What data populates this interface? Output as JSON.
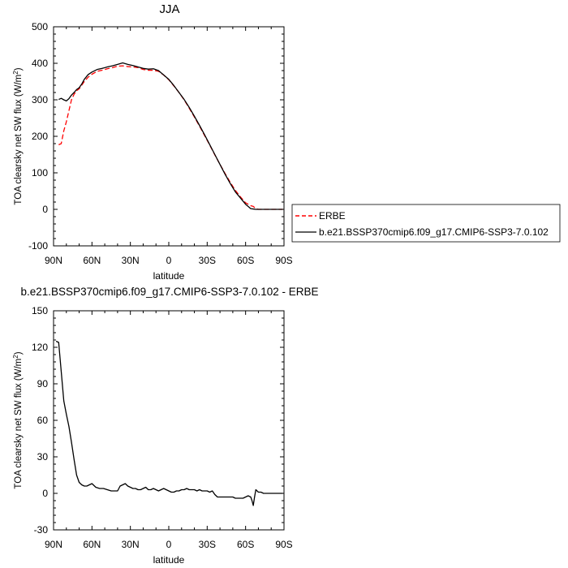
{
  "chart_data": [
    {
      "type": "line",
      "title": "JJA",
      "xlabel": "latitude",
      "ylabel": "TOA clearsky net SW flux (W/m",
      "ylabel_sup": "2",
      "ylabel_end": ")",
      "xlim": [
        90,
        -90
      ],
      "ylim": [
        -100,
        500
      ],
      "x_ticks": [
        90,
        60,
        30,
        0,
        -30,
        -60,
        -90
      ],
      "x_tick_labels": [
        "90N",
        "60N",
        "30N",
        "0",
        "30S",
        "60S",
        "90S"
      ],
      "y_ticks": [
        -100,
        0,
        100,
        200,
        300,
        400,
        500
      ],
      "y_tick_labels": [
        "-100",
        "0",
        "100",
        "200",
        "300",
        "400",
        "500"
      ],
      "legend": "outside-right",
      "series": [
        {
          "name": "ERBE",
          "color": "#ff0000",
          "dash": "dashed",
          "x": [
            86,
            84,
            82,
            80,
            78,
            76,
            74,
            72,
            70,
            68,
            66,
            63,
            60,
            56,
            52,
            48,
            44,
            40,
            36,
            32,
            28,
            24,
            20,
            16,
            12,
            8,
            4,
            0,
            -4,
            -8,
            -12,
            -16,
            -20,
            -24,
            -28,
            -32,
            -36,
            -40,
            -44,
            -48,
            -52,
            -56,
            -60,
            -64,
            -66,
            -68,
            -70,
            -74,
            -78,
            -82,
            -86,
            -89
          ],
          "values": [
            177,
            180,
            215,
            240,
            270,
            300,
            315,
            325,
            330,
            340,
            350,
            362,
            370,
            378,
            381,
            385,
            388,
            392,
            393,
            391,
            390,
            388,
            383,
            381,
            381,
            378,
            368,
            355,
            338,
            320,
            300,
            277,
            253,
            228,
            202,
            176,
            149,
            123,
            98,
            74,
            52,
            34,
            18,
            10,
            8,
            2,
            0,
            0,
            0,
            0,
            0,
            0
          ]
        },
        {
          "name": "b.e21.BSSP370cmip6.f09_g17.CMIP6-SSP3-7.0.102",
          "color": "#000000",
          "dash": "solid",
          "x": [
            86,
            84,
            82,
            80,
            78,
            76,
            74,
            72,
            70,
            68,
            66,
            63,
            60,
            56,
            52,
            48,
            44,
            40,
            36,
            32,
            28,
            24,
            20,
            16,
            12,
            8,
            4,
            0,
            -4,
            -8,
            -12,
            -16,
            -20,
            -24,
            -28,
            -32,
            -36,
            -40,
            -44,
            -48,
            -52,
            -56,
            -60,
            -64,
            -66,
            -68,
            -70,
            -74,
            -78,
            -82,
            -86,
            -89
          ],
          "values": [
            301,
            304,
            300,
            297,
            303,
            313,
            320,
            328,
            333,
            343,
            356,
            369,
            376,
            383,
            386,
            390,
            393,
            397,
            401,
            397,
            394,
            390,
            386,
            384,
            385,
            380,
            368,
            356,
            339,
            320,
            301,
            279,
            255,
            230,
            204,
            177,
            150,
            123,
            96,
            71,
            48,
            31,
            14,
            2,
            1,
            0,
            0,
            0,
            0,
            0,
            0,
            0
          ]
        }
      ]
    },
    {
      "type": "line",
      "title": "b.e21.BSSP370cmip6.f09_g17.CMIP6-SSP3-7.0.102 - ERBE",
      "xlabel": "latitude",
      "ylabel": "TOA clearsky net SW flux (W/m",
      "ylabel_sup": "2",
      "ylabel_end": ")",
      "xlim": [
        90,
        -90
      ],
      "ylim": [
        -30,
        150
      ],
      "x_ticks": [
        90,
        60,
        30,
        0,
        -30,
        -60,
        -90
      ],
      "x_tick_labels": [
        "90N",
        "60N",
        "30N",
        "0",
        "30S",
        "60S",
        "90S"
      ],
      "y_ticks": [
        -30,
        0,
        30,
        60,
        90,
        120,
        150
      ],
      "y_tick_labels": [
        "-30",
        "0",
        "30",
        "60",
        "90",
        "120",
        "150"
      ],
      "series": [
        {
          "color": "#000000",
          "dash": "solid",
          "x": [
            88,
            86,
            84,
            82,
            80,
            78,
            76,
            74,
            72,
            70,
            68,
            66,
            64,
            62,
            60,
            57,
            54,
            51,
            48,
            45,
            42,
            40,
            38,
            36,
            34,
            32,
            30,
            28,
            26,
            24,
            22,
            20,
            18,
            16,
            14,
            12,
            10,
            8,
            6,
            4,
            2,
            0,
            -2,
            -4,
            -6,
            -8,
            -10,
            -12,
            -14,
            -16,
            -18,
            -20,
            -22,
            -24,
            -26,
            -28,
            -30,
            -32,
            -34,
            -36,
            -38,
            -40,
            -42,
            -44,
            -46,
            -48,
            -50,
            -52,
            -54,
            -56,
            -58,
            -60,
            -62,
            -64,
            -65,
            -66,
            -67,
            -68,
            -70,
            -72,
            -74,
            -78,
            -82,
            -86,
            -89
          ],
          "values": [
            125,
            124,
            100,
            76,
            65,
            55,
            42,
            28,
            15,
            9,
            7,
            6,
            6,
            7,
            8,
            5,
            4,
            4,
            3,
            2,
            2,
            2,
            6,
            7,
            8,
            6,
            5,
            4,
            4,
            3,
            3,
            4,
            5,
            3,
            3,
            4,
            3,
            2,
            3,
            4,
            3,
            2,
            1,
            1,
            2,
            2,
            3,
            3,
            4,
            3,
            3,
            3,
            2,
            3,
            2,
            2,
            2,
            1,
            2,
            -1,
            -3,
            -3,
            -3,
            -3,
            -3,
            -3,
            -3,
            -4,
            -4,
            -4,
            -4,
            -3,
            -2,
            -3,
            -6,
            -10,
            -3,
            3,
            1,
            1,
            0,
            0,
            0,
            0,
            0
          ]
        }
      ]
    }
  ]
}
